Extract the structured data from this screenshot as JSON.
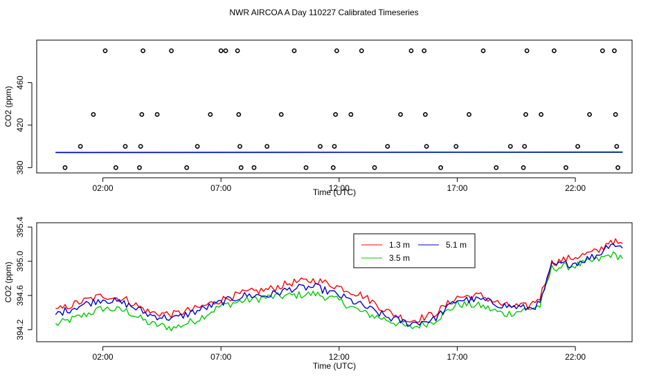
{
  "page_title": "NWR AIRCOA A  Day 110227  Calibrated Timeseries",
  "chart_data": [
    {
      "type": "scatter",
      "title": "NWR AIRCOA A  Day 110227  Calibrated Timeseries",
      "xlabel": "Time (UTC)",
      "ylabel": "CO2 (ppm)",
      "xlim": [
        -0.8,
        24.4
      ],
      "ylim": [
        375,
        500
      ],
      "x_ticks": [
        2,
        7,
        12,
        17,
        22
      ],
      "x_tick_labels": [
        "02:00",
        "07:00",
        "12:00",
        "17:00",
        "22:00"
      ],
      "y_ticks": [
        380,
        420,
        460
      ],
      "y_tick_labels": [
        "380",
        "420",
        "460"
      ],
      "points_x": [
        0.4,
        1.05,
        1.6,
        2.1,
        2.55,
        2.95,
        3.55,
        3.6,
        3.65,
        3.7,
        4.3,
        4.9,
        5.55,
        6.0,
        6.55,
        7.0,
        7.2,
        7.7,
        7.75,
        7.8,
        7.85,
        8.4,
        8.95,
        9.55,
        10.1,
        10.6,
        11.2,
        11.75,
        11.8,
        11.85,
        11.9,
        12.5,
        12.95,
        13.5,
        14.05,
        14.6,
        15.05,
        15.6,
        15.65,
        15.7,
        16.3,
        16.95,
        17.5,
        18.1,
        18.65,
        19.25,
        19.8,
        19.85,
        19.9,
        19.95,
        20.55,
        21.1,
        21.6,
        22.1,
        22.6,
        23.15,
        23.65,
        23.7,
        23.75,
        23.8
      ],
      "points_y": [
        380,
        400,
        430,
        490,
        380,
        400,
        380,
        400,
        430,
        490,
        430,
        490,
        380,
        400,
        430,
        490,
        490,
        490,
        430,
        400,
        380,
        380,
        400,
        430,
        490,
        380,
        400,
        380,
        400,
        430,
        490,
        430,
        490,
        380,
        400,
        430,
        490,
        490,
        430,
        400,
        380,
        400,
        430,
        490,
        380,
        400,
        380,
        400,
        430,
        490,
        430,
        490,
        380,
        400,
        430,
        490,
        490,
        430,
        400,
        380
      ],
      "series": [
        {
          "name": "1.3 m",
          "color": "#ff0000",
          "x": [
            0.0,
            24.0
          ],
          "values": [
            394.2,
            394.5
          ]
        },
        {
          "name": "3.5 m",
          "color": "#00cc00",
          "x": [
            0.0,
            24.0
          ],
          "values": [
            394.1,
            394.4
          ]
        },
        {
          "name": "5.1 m",
          "color": "#0000cc",
          "x": [
            0.0,
            24.0
          ],
          "values": [
            394.3,
            394.6
          ]
        }
      ]
    },
    {
      "type": "line",
      "xlabel": "Time (UTC)",
      "ylabel": "CO2 (ppm)",
      "xlim": [
        -0.8,
        24.4
      ],
      "ylim": [
        394.06,
        395.45
      ],
      "x_ticks": [
        2,
        7,
        12,
        17,
        22
      ],
      "x_tick_labels": [
        "02:00",
        "07:00",
        "12:00",
        "17:00",
        "22:00"
      ],
      "y_ticks": [
        394.2,
        394.6,
        395.0,
        395.4
      ],
      "y_tick_labels": [
        "394.2",
        "394.6",
        "395.0",
        "395.4"
      ],
      "legend_position": "top-right",
      "x": [
        0.0,
        1.0,
        2.0,
        3.0,
        4.0,
        5.0,
        6.0,
        7.0,
        8.0,
        9.0,
        10.0,
        11.0,
        12.0,
        13.0,
        14.0,
        15.0,
        16.0,
        17.0,
        18.0,
        19.0,
        20.0,
        20.5,
        21.0,
        22.0,
        23.0,
        23.5,
        24.0
      ],
      "series": [
        {
          "name": "1.3 m",
          "color": "#ff0000",
          "values": [
            394.42,
            394.52,
            394.6,
            394.55,
            394.4,
            394.38,
            394.45,
            394.55,
            394.63,
            394.67,
            394.75,
            394.78,
            394.7,
            394.6,
            394.42,
            394.3,
            394.38,
            394.58,
            394.6,
            394.48,
            394.47,
            394.58,
            394.98,
            395.05,
            395.12,
            395.25,
            395.18
          ]
        },
        {
          "name": "5.1 m",
          "color": "#0000cc",
          "values": [
            394.38,
            394.48,
            394.56,
            394.5,
            394.37,
            394.33,
            394.42,
            394.52,
            394.6,
            394.6,
            394.68,
            394.7,
            394.6,
            394.48,
            394.35,
            394.27,
            394.32,
            394.55,
            394.55,
            394.48,
            394.45,
            394.5,
            394.95,
            394.98,
            395.08,
            395.22,
            395.15
          ]
        },
        {
          "name": "3.5 m",
          "color": "#00cc00",
          "values": [
            394.26,
            394.35,
            394.45,
            394.42,
            394.27,
            394.22,
            394.32,
            394.48,
            394.54,
            394.58,
            394.6,
            394.62,
            394.54,
            394.4,
            394.32,
            394.22,
            394.3,
            394.5,
            394.48,
            394.38,
            394.44,
            394.48,
            394.92,
            394.95,
            395.02,
            395.08,
            395.05
          ]
        }
      ]
    }
  ]
}
